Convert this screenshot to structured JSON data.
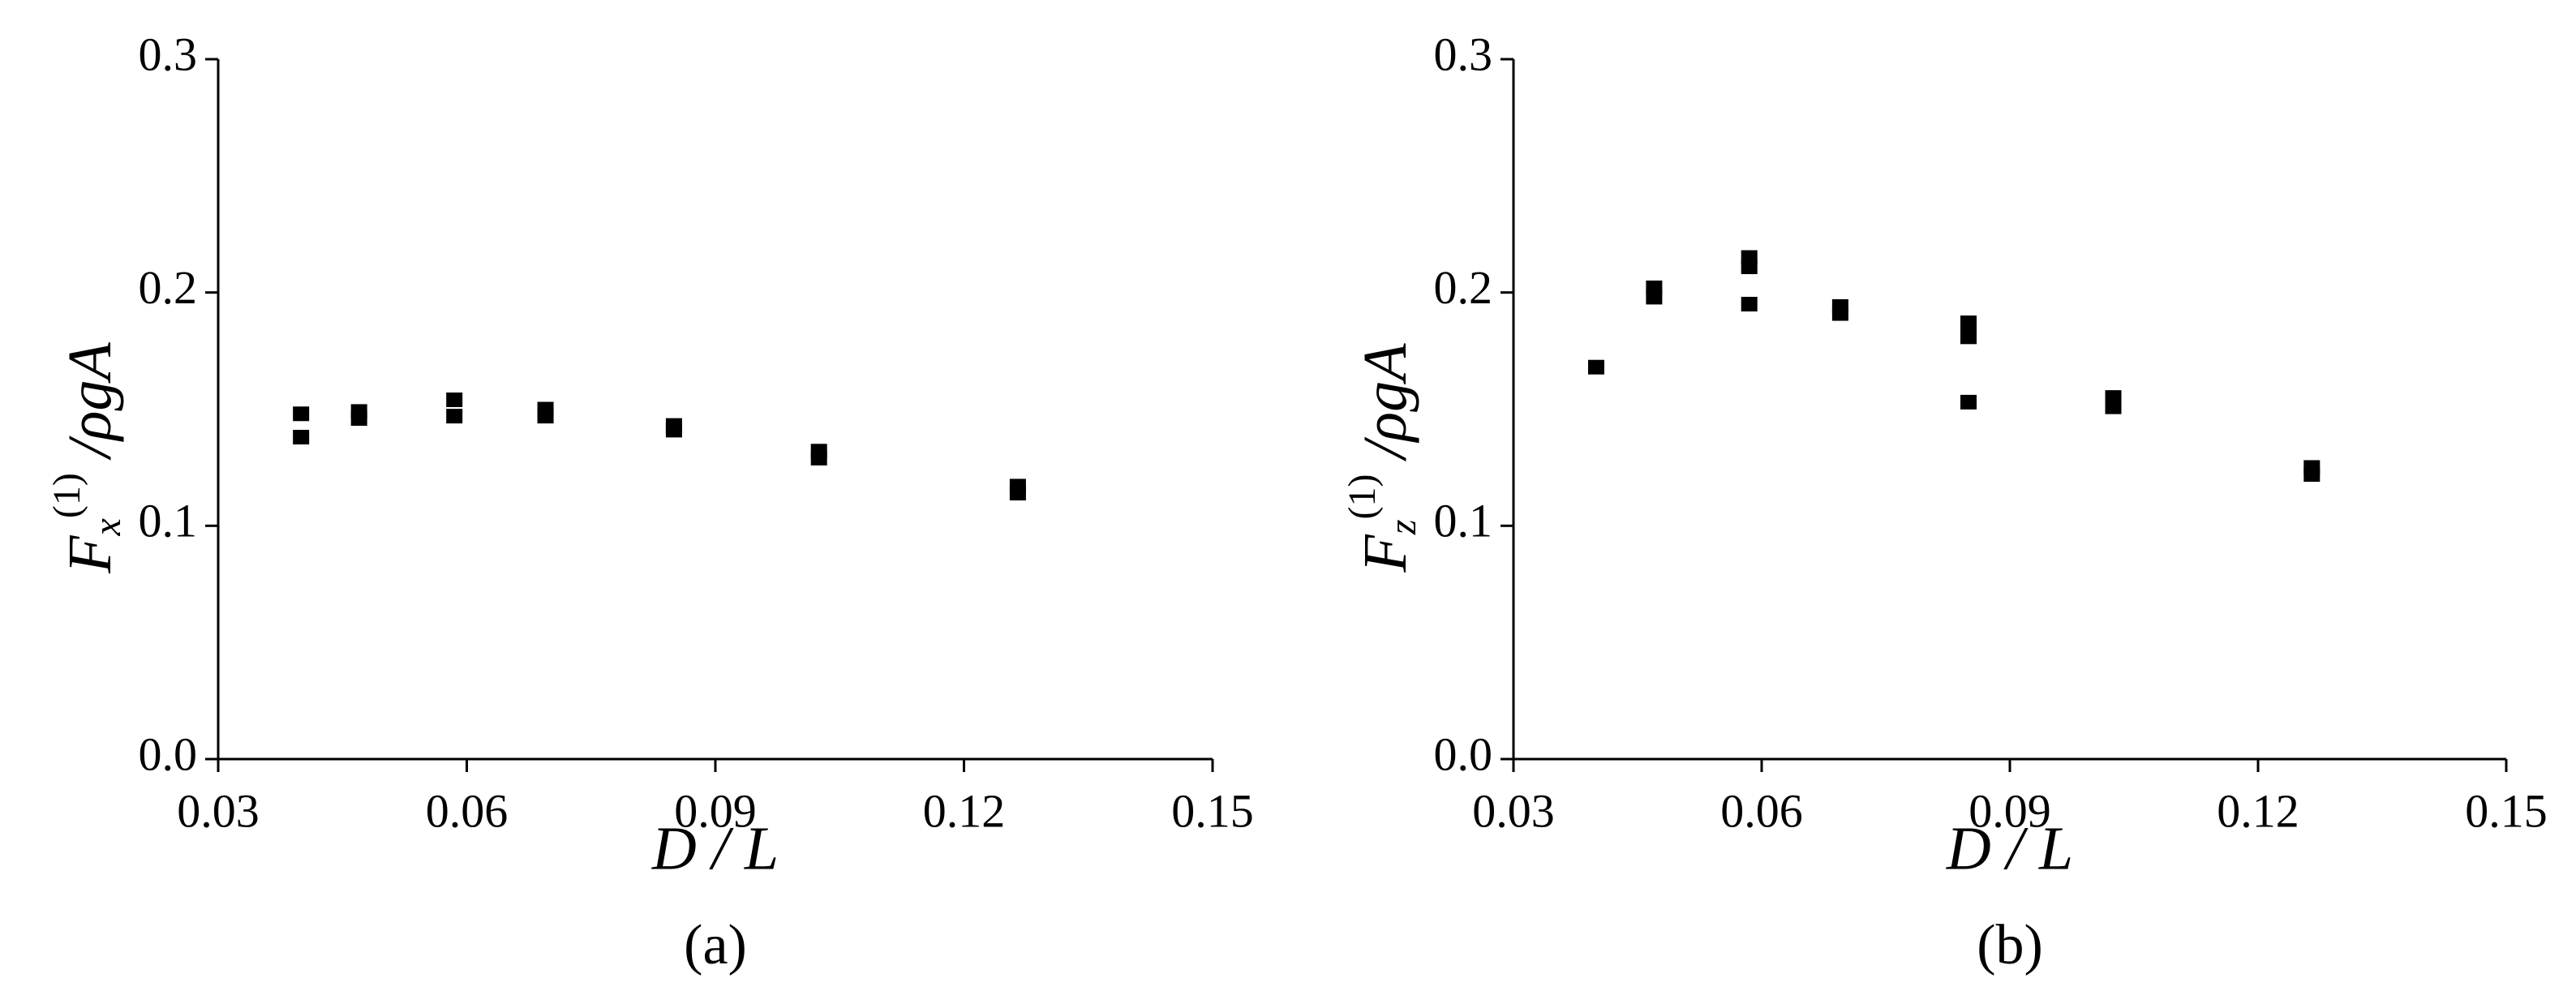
{
  "chart_data": [
    {
      "type": "scatter",
      "caption": "(a)",
      "xlabel": "D / L",
      "ylabel": {
        "main": "F",
        "sub": "x",
        "sup": "(1)",
        "rest": " /ρgA"
      },
      "xlim": [
        0.03,
        0.15
      ],
      "xticks": [
        0.03,
        0.06,
        0.09,
        0.12,
        0.15
      ],
      "ylim": [
        0,
        0.3
      ],
      "yticks": [
        {
          "value": 0,
          "label": "0.0"
        },
        0.1,
        0.2,
        0.3
      ],
      "series": [
        {
          "color": "#000000",
          "x": [
            0.04,
            0.04,
            0.047,
            0.047,
            0.0585,
            0.0585,
            0.0695,
            0.0695,
            0.085,
            0.085,
            0.1025,
            0.1025,
            0.1265,
            0.1265
          ],
          "values": [
            0.148,
            0.138,
            0.149,
            0.146,
            0.154,
            0.147,
            0.15,
            0.147,
            0.143,
            0.141,
            0.132,
            0.129,
            0.117,
            0.114
          ]
        }
      ]
    },
    {
      "type": "scatter",
      "caption": "(b)",
      "xlabel": "D / L",
      "ylabel": {
        "main": "F",
        "sub": "z",
        "sup": "(1)",
        "rest": " /ρgA"
      },
      "xlim": [
        0.03,
        0.15
      ],
      "xticks": [
        0.03,
        0.06,
        0.09,
        0.12,
        0.15
      ],
      "ylim": [
        0,
        0.3
      ],
      "yticks": [
        {
          "value": 0,
          "label": "0.0"
        },
        0.1,
        0.2,
        0.3
      ],
      "series": [
        {
          "color": "#000000",
          "x": [
            0.04,
            0.047,
            0.047,
            0.0585,
            0.0585,
            0.0585,
            0.0695,
            0.0695,
            0.085,
            0.085,
            0.085,
            0.1025,
            0.1025,
            0.1265,
            0.1265
          ],
          "values": [
            0.168,
            0.202,
            0.198,
            0.215,
            0.211,
            0.195,
            0.194,
            0.191,
            0.187,
            0.181,
            0.153,
            0.155,
            0.151,
            0.125,
            0.122
          ]
        }
      ]
    }
  ]
}
